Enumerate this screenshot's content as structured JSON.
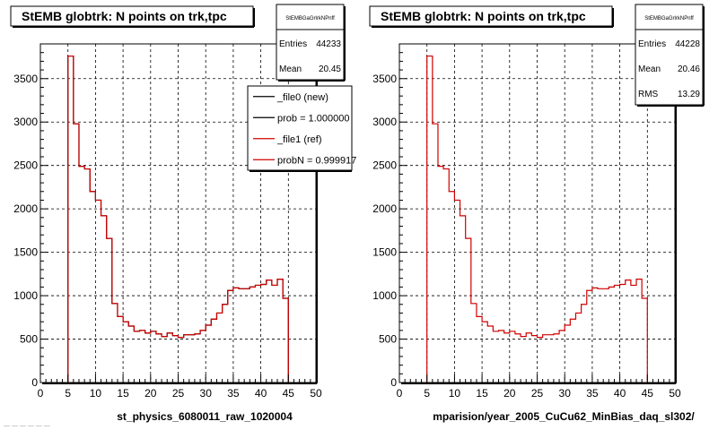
{
  "chart_data": [
    {
      "type": "histogram",
      "title": "StEMB globtrk: N points on trk,tpc",
      "xlabel": "st_physics_6080011_raw_1020004",
      "xlim": [
        0,
        50
      ],
      "ylim": [
        0,
        3900
      ],
      "x_ticks": [
        "0",
        "5",
        "10",
        "15",
        "20",
        "25",
        "30",
        "35",
        "40",
        "45",
        "50"
      ],
      "y_ticks": [
        "0",
        "500",
        "1000",
        "1500",
        "2000",
        "2500",
        "3000",
        "3500"
      ],
      "grid": true,
      "stats": {
        "name": "StEMBGaGrlrkNPnff",
        "rows": [
          {
            "label": "Entries",
            "value": "44233"
          },
          {
            "label": "Mean",
            "value": "20.45"
          }
        ]
      },
      "legend": {
        "placement": "top-right",
        "entries": [
          {
            "label": "_file0 (new)",
            "color": "#000000"
          },
          {
            "label": "prob = 1.000000",
            "color": "#000000"
          },
          {
            "label": "_file1 (ref)",
            "color": "#d00000"
          },
          {
            "label": "probN = 0.999917",
            "color": "#d00000"
          }
        ]
      },
      "series": [
        {
          "name": "_file0 (new)",
          "color": "#000000",
          "bin_edges": [
            5,
            6,
            7,
            8,
            9,
            10,
            11,
            12,
            13,
            14,
            15,
            16,
            17,
            18,
            19,
            20,
            21,
            22,
            23,
            24,
            25,
            26,
            27,
            28,
            29,
            30,
            31,
            32,
            33,
            34,
            35,
            36,
            37,
            38,
            39,
            40,
            41,
            42,
            43,
            44,
            45
          ],
          "values": [
            3760,
            2980,
            2490,
            2460,
            2200,
            2100,
            1920,
            1660,
            910,
            760,
            700,
            650,
            590,
            600,
            570,
            590,
            560,
            530,
            570,
            540,
            520,
            550,
            550,
            560,
            600,
            660,
            730,
            800,
            900,
            1060,
            1090,
            1080,
            1080,
            1100,
            1120,
            1130,
            1180,
            1120,
            1190,
            970
          ]
        },
        {
          "name": "_file1 (ref)",
          "color": "#d00000",
          "bin_edges": [
            5,
            6,
            7,
            8,
            9,
            10,
            11,
            12,
            13,
            14,
            15,
            16,
            17,
            18,
            19,
            20,
            21,
            22,
            23,
            24,
            25,
            26,
            27,
            28,
            29,
            30,
            31,
            32,
            33,
            34,
            35,
            36,
            37,
            38,
            39,
            40,
            41,
            42,
            43,
            44,
            45
          ],
          "values": [
            3760,
            2980,
            2490,
            2460,
            2200,
            2100,
            1920,
            1660,
            910,
            760,
            700,
            650,
            590,
            600,
            570,
            590,
            560,
            530,
            570,
            540,
            520,
            550,
            550,
            560,
            600,
            660,
            730,
            800,
            900,
            1060,
            1090,
            1080,
            1080,
            1100,
            1120,
            1130,
            1180,
            1120,
            1190,
            970
          ]
        }
      ]
    },
    {
      "type": "histogram",
      "title": "StEMB globtrk: N points on trk,tpc",
      "xlabel": "mparision/year_2005_CuCu62_MinBias_daq_sl302/",
      "xlim": [
        0,
        50
      ],
      "ylim": [
        0,
        3900
      ],
      "x_ticks": [
        "0",
        "5",
        "10",
        "15",
        "20",
        "25",
        "30",
        "35",
        "40",
        "45",
        "50"
      ],
      "y_ticks": [
        "0",
        "500",
        "1000",
        "1500",
        "2000",
        "2500",
        "3000",
        "3500"
      ],
      "grid": true,
      "stats": {
        "name": "StEMBGaGrlrkNPnff",
        "rows": [
          {
            "label": "Entries",
            "value": "44228"
          },
          {
            "label": "Mean",
            "value": "20.46"
          },
          {
            "label": "RMS",
            "value": "13.29"
          }
        ]
      },
      "series": [
        {
          "name": "_file1 (ref)",
          "color": "#d00000",
          "bin_edges": [
            5,
            6,
            7,
            8,
            9,
            10,
            11,
            12,
            13,
            14,
            15,
            16,
            17,
            18,
            19,
            20,
            21,
            22,
            23,
            24,
            25,
            26,
            27,
            28,
            29,
            30,
            31,
            32,
            33,
            34,
            35,
            36,
            37,
            38,
            39,
            40,
            41,
            42,
            43,
            44,
            45
          ],
          "values": [
            3760,
            2980,
            2490,
            2460,
            2200,
            2100,
            1920,
            1660,
            910,
            760,
            700,
            650,
            590,
            600,
            570,
            590,
            560,
            530,
            570,
            540,
            520,
            550,
            550,
            560,
            600,
            660,
            730,
            800,
            900,
            1060,
            1090,
            1080,
            1080,
            1100,
            1120,
            1130,
            1180,
            1120,
            1190,
            970
          ]
        }
      ]
    }
  ],
  "footer_text": "— — — — — —"
}
